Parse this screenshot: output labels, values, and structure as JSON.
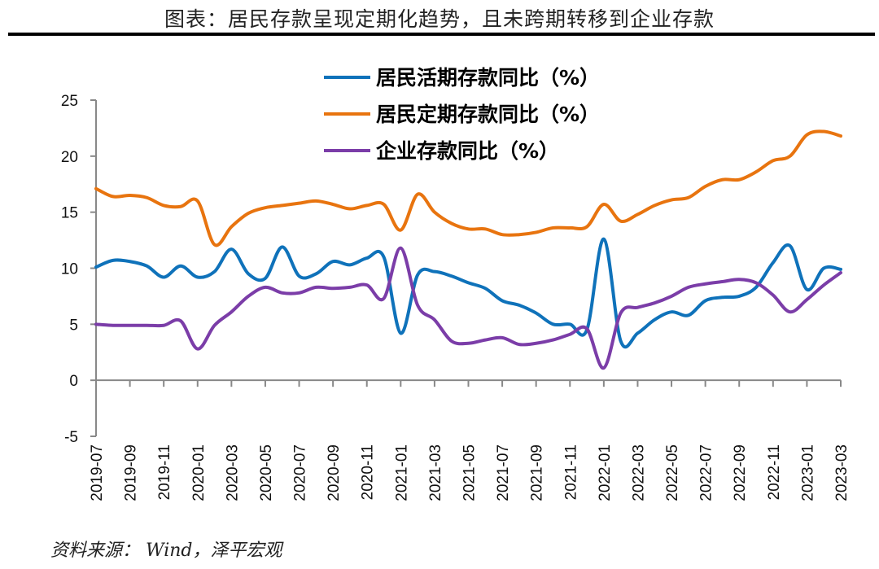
{
  "title": "图表：居民存款呈现定期化趋势，且未跨期转移到企业存款",
  "source": "资料来源： Wind，泽平宏观",
  "chart_data": {
    "type": "line",
    "xlabel": "",
    "ylabel": "",
    "ylim": [
      -5,
      25
    ],
    "yticks": [
      -5,
      0,
      5,
      10,
      15,
      20,
      25
    ],
    "grid": false,
    "legend_position": "top-center",
    "x": [
      "2019-07",
      "2019-08",
      "2019-09",
      "2019-10",
      "2019-11",
      "2019-12",
      "2020-01",
      "2020-02",
      "2020-03",
      "2020-04",
      "2020-05",
      "2020-06",
      "2020-07",
      "2020-08",
      "2020-09",
      "2020-10",
      "2020-11",
      "2020-12",
      "2021-01",
      "2021-02",
      "2021-03",
      "2021-04",
      "2021-05",
      "2021-06",
      "2021-07",
      "2021-08",
      "2021-09",
      "2021-10",
      "2021-11",
      "2021-12",
      "2022-01",
      "2022-02",
      "2022-03",
      "2022-04",
      "2022-05",
      "2022-06",
      "2022-07",
      "2022-08",
      "2022-09",
      "2022-10",
      "2022-11",
      "2022-12",
      "2023-01",
      "2023-02",
      "2023-03"
    ],
    "xtick_labels": [
      "2019-07",
      "2019-09",
      "2019-11",
      "2020-01",
      "2020-03",
      "2020-05",
      "2020-07",
      "2020-09",
      "2020-11",
      "2021-01",
      "2021-03",
      "2021-05",
      "2021-07",
      "2021-09",
      "2021-11",
      "2022-01",
      "2022-03",
      "2022-05",
      "2022-07",
      "2022-09",
      "2022-11",
      "2023-01",
      "2023-03"
    ],
    "series": [
      {
        "name": "居民活期存款同比（%）",
        "color": "#0F72BA",
        "values": [
          10.1,
          10.7,
          10.6,
          10.2,
          9.2,
          10.2,
          9.2,
          9.7,
          11.7,
          9.5,
          9.1,
          11.9,
          9.3,
          9.5,
          10.6,
          10.3,
          10.9,
          11.0,
          4.2,
          9.4,
          9.7,
          9.3,
          8.7,
          8.2,
          7.1,
          6.7,
          6.0,
          5.0,
          5.0,
          4.5,
          12.6,
          3.5,
          4.2,
          5.4,
          6.1,
          5.8,
          7.1,
          7.4,
          7.5,
          8.3,
          10.5,
          12.0,
          8.1,
          10.0,
          9.9
        ]
      },
      {
        "name": "居民定期存款同比（%）",
        "color": "#E8740F",
        "values": [
          17.1,
          16.4,
          16.5,
          16.3,
          15.6,
          15.5,
          16.0,
          12.1,
          13.7,
          14.9,
          15.4,
          15.6,
          15.8,
          16.0,
          15.7,
          15.3,
          15.6,
          15.7,
          13.4,
          16.6,
          15.0,
          14.0,
          13.5,
          13.5,
          13.0,
          13.0,
          13.2,
          13.6,
          13.6,
          13.7,
          15.7,
          14.2,
          14.8,
          15.6,
          16.1,
          16.3,
          17.3,
          17.9,
          17.9,
          18.6,
          19.6,
          20.0,
          21.9,
          22.2,
          21.8
        ]
      },
      {
        "name": "企业存款同比（%）",
        "color": "#7B3DA8",
        "values": [
          5.0,
          4.9,
          4.9,
          4.9,
          4.9,
          5.3,
          2.8,
          4.9,
          6.1,
          7.5,
          8.3,
          7.8,
          7.8,
          8.3,
          8.2,
          8.3,
          8.5,
          7.3,
          11.8,
          6.7,
          5.4,
          3.5,
          3.3,
          3.6,
          3.8,
          3.2,
          3.3,
          3.6,
          4.1,
          4.6,
          1.1,
          6.0,
          6.5,
          6.9,
          7.5,
          8.3,
          8.6,
          8.8,
          9.0,
          8.7,
          7.6,
          6.1,
          7.2,
          8.5,
          9.6
        ]
      }
    ]
  }
}
